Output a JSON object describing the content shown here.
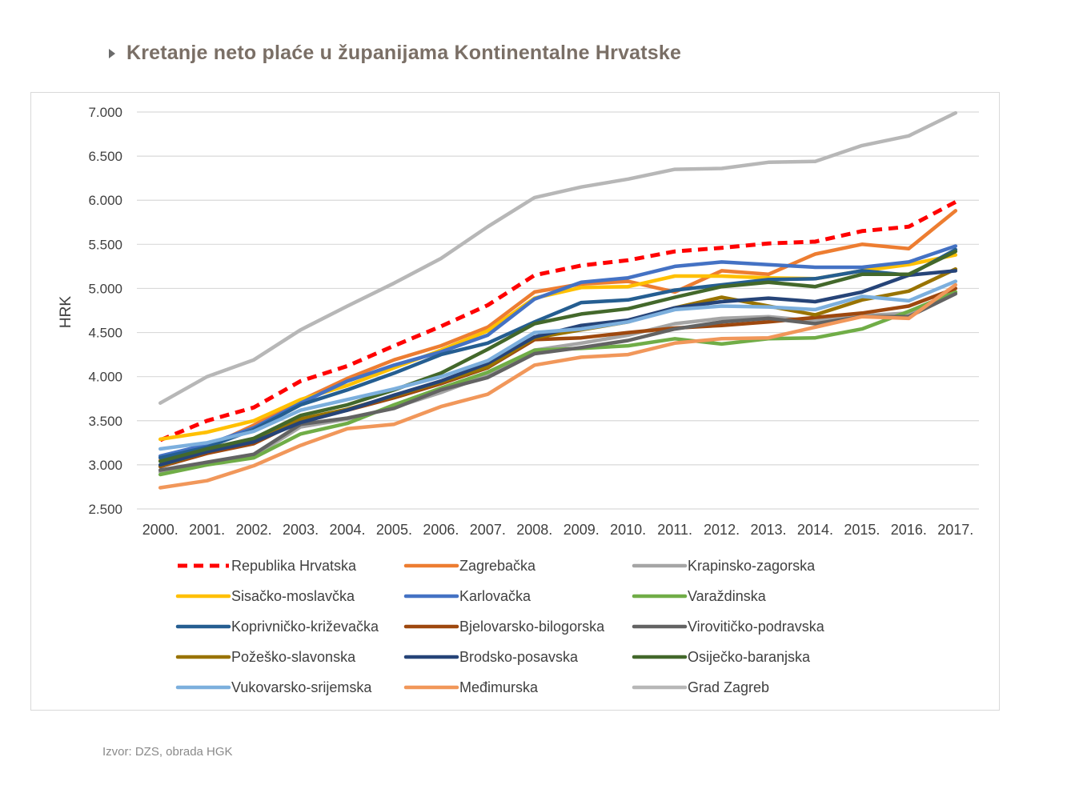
{
  "header": {
    "title": "Kretanje neto plaće u županijama Kontinentalne Hrvatske"
  },
  "source": "Izvor: DZS, obrada HGK",
  "chart_data": {
    "type": "line",
    "title": "Kretanje neto plaće u županijama Kontinentalne Hrvatske",
    "xlabel": "",
    "ylabel": "HRK",
    "ylim": [
      2500,
      7000
    ],
    "y_ticks": [
      2500,
      3000,
      3500,
      4000,
      4500,
      5000,
      5500,
      6000,
      6500,
      7000
    ],
    "y_tick_labels": [
      "2.500",
      "3.000",
      "3.500",
      "4.000",
      "4.500",
      "5.000",
      "5.500",
      "6.000",
      "6.500",
      "7.000"
    ],
    "grid": true,
    "legend_position": "bottom",
    "categories": [
      "2000.",
      "2001.",
      "2002.",
      "2003.",
      "2004.",
      "2005.",
      "2006.",
      "2007.",
      "2008.",
      "2009.",
      "2010.",
      "2011.",
      "2012.",
      "2013.",
      "2014.",
      "2015.",
      "2016.",
      "2017."
    ],
    "series": [
      {
        "name": "Republika Hrvatska",
        "color": "#ff0000",
        "dashed": true,
        "values": [
          3280,
          3500,
          3650,
          3950,
          4120,
          4350,
          4570,
          4810,
          5150,
          5260,
          5320,
          5420,
          5460,
          5510,
          5530,
          5650,
          5700,
          5980
        ]
      },
      {
        "name": "Zagrebačka",
        "color": "#ed7d31",
        "dashed": false,
        "values": [
          3050,
          3200,
          3450,
          3730,
          3980,
          4190,
          4350,
          4560,
          4960,
          5050,
          5080,
          4960,
          5200,
          5160,
          5390,
          5500,
          5450,
          5880
        ]
      },
      {
        "name": "Krapinsko-zagorska",
        "color": "#a5a5a5",
        "dashed": false,
        "values": [
          2920,
          3020,
          3100,
          3430,
          3520,
          3650,
          3820,
          4020,
          4300,
          4380,
          4470,
          4600,
          4660,
          4680,
          4630,
          4690,
          4720,
          4960
        ]
      },
      {
        "name": "Sisačko-moslavčka",
        "color": "#ffc000",
        "dashed": false,
        "values": [
          3290,
          3370,
          3500,
          3740,
          3900,
          4100,
          4300,
          4520,
          4890,
          5010,
          5020,
          5140,
          5140,
          5120,
          5110,
          5200,
          5270,
          5380
        ]
      },
      {
        "name": "Karlovačka",
        "color": "#4472c4",
        "dashed": false,
        "values": [
          3100,
          3230,
          3420,
          3700,
          3950,
          4130,
          4280,
          4470,
          4880,
          5070,
          5120,
          5250,
          5300,
          5270,
          5240,
          5240,
          5300,
          5480
        ]
      },
      {
        "name": "Varaždinska",
        "color": "#70ad47",
        "dashed": false,
        "values": [
          2890,
          3000,
          3080,
          3350,
          3470,
          3680,
          3870,
          4050,
          4300,
          4320,
          4350,
          4430,
          4370,
          4430,
          4440,
          4540,
          4740,
          4960
        ]
      },
      {
        "name": "Koprivničko-križevačka",
        "color": "#255e91",
        "dashed": false,
        "values": [
          3080,
          3200,
          3400,
          3680,
          3850,
          4040,
          4250,
          4380,
          4620,
          4840,
          4870,
          4980,
          5040,
          5100,
          5110,
          5200,
          5150,
          5440
        ]
      },
      {
        "name": "Bjelovarsko-bilogorska",
        "color": "#9e480e",
        "dashed": false,
        "values": [
          2980,
          3130,
          3240,
          3500,
          3620,
          3760,
          3920,
          4100,
          4420,
          4440,
          4500,
          4550,
          4580,
          4620,
          4670,
          4720,
          4800,
          5000
        ]
      },
      {
        "name": "Virovitičko-podravska",
        "color": "#636363",
        "dashed": false,
        "values": [
          2940,
          3030,
          3120,
          3460,
          3530,
          3640,
          3850,
          3990,
          4260,
          4330,
          4410,
          4540,
          4620,
          4660,
          4600,
          4680,
          4680,
          4940
        ]
      },
      {
        "name": "Požeško-slavonska",
        "color": "#997300",
        "dashed": false,
        "values": [
          2990,
          3150,
          3280,
          3520,
          3630,
          3780,
          3940,
          4110,
          4440,
          4530,
          4620,
          4780,
          4900,
          4800,
          4700,
          4870,
          4970,
          5220
        ]
      },
      {
        "name": "Brodsko-posavska",
        "color": "#264478",
        "dashed": false,
        "values": [
          3000,
          3150,
          3260,
          3480,
          3620,
          3790,
          3950,
          4150,
          4450,
          4580,
          4640,
          4780,
          4850,
          4890,
          4850,
          4960,
          5150,
          5200
        ]
      },
      {
        "name": "Osiječko-baranjska",
        "color": "#43682b",
        "dashed": false,
        "values": [
          3040,
          3180,
          3300,
          3560,
          3680,
          3850,
          4040,
          4310,
          4600,
          4710,
          4770,
          4900,
          5020,
          5070,
          5020,
          5160,
          5160,
          5420
        ]
      },
      {
        "name": "Vukovarsko-srijemska",
        "color": "#7cafdd",
        "dashed": false,
        "values": [
          3180,
          3250,
          3380,
          3620,
          3740,
          3860,
          4000,
          4180,
          4500,
          4540,
          4620,
          4760,
          4800,
          4790,
          4760,
          4910,
          4860,
          5080
        ]
      },
      {
        "name": "Međimurska",
        "color": "#f1975a",
        "dashed": false,
        "values": [
          2740,
          2820,
          2990,
          3220,
          3410,
          3460,
          3660,
          3800,
          4130,
          4220,
          4250,
          4380,
          4430,
          4440,
          4560,
          4680,
          4660,
          5040
        ]
      },
      {
        "name": "Grad Zagreb",
        "color": "#b7b7b7",
        "dashed": false,
        "values": [
          3700,
          4000,
          4190,
          4530,
          4800,
          5060,
          5340,
          5700,
          6030,
          6150,
          6240,
          6350,
          6360,
          6430,
          6440,
          6620,
          6730,
          6990
        ]
      }
    ]
  }
}
